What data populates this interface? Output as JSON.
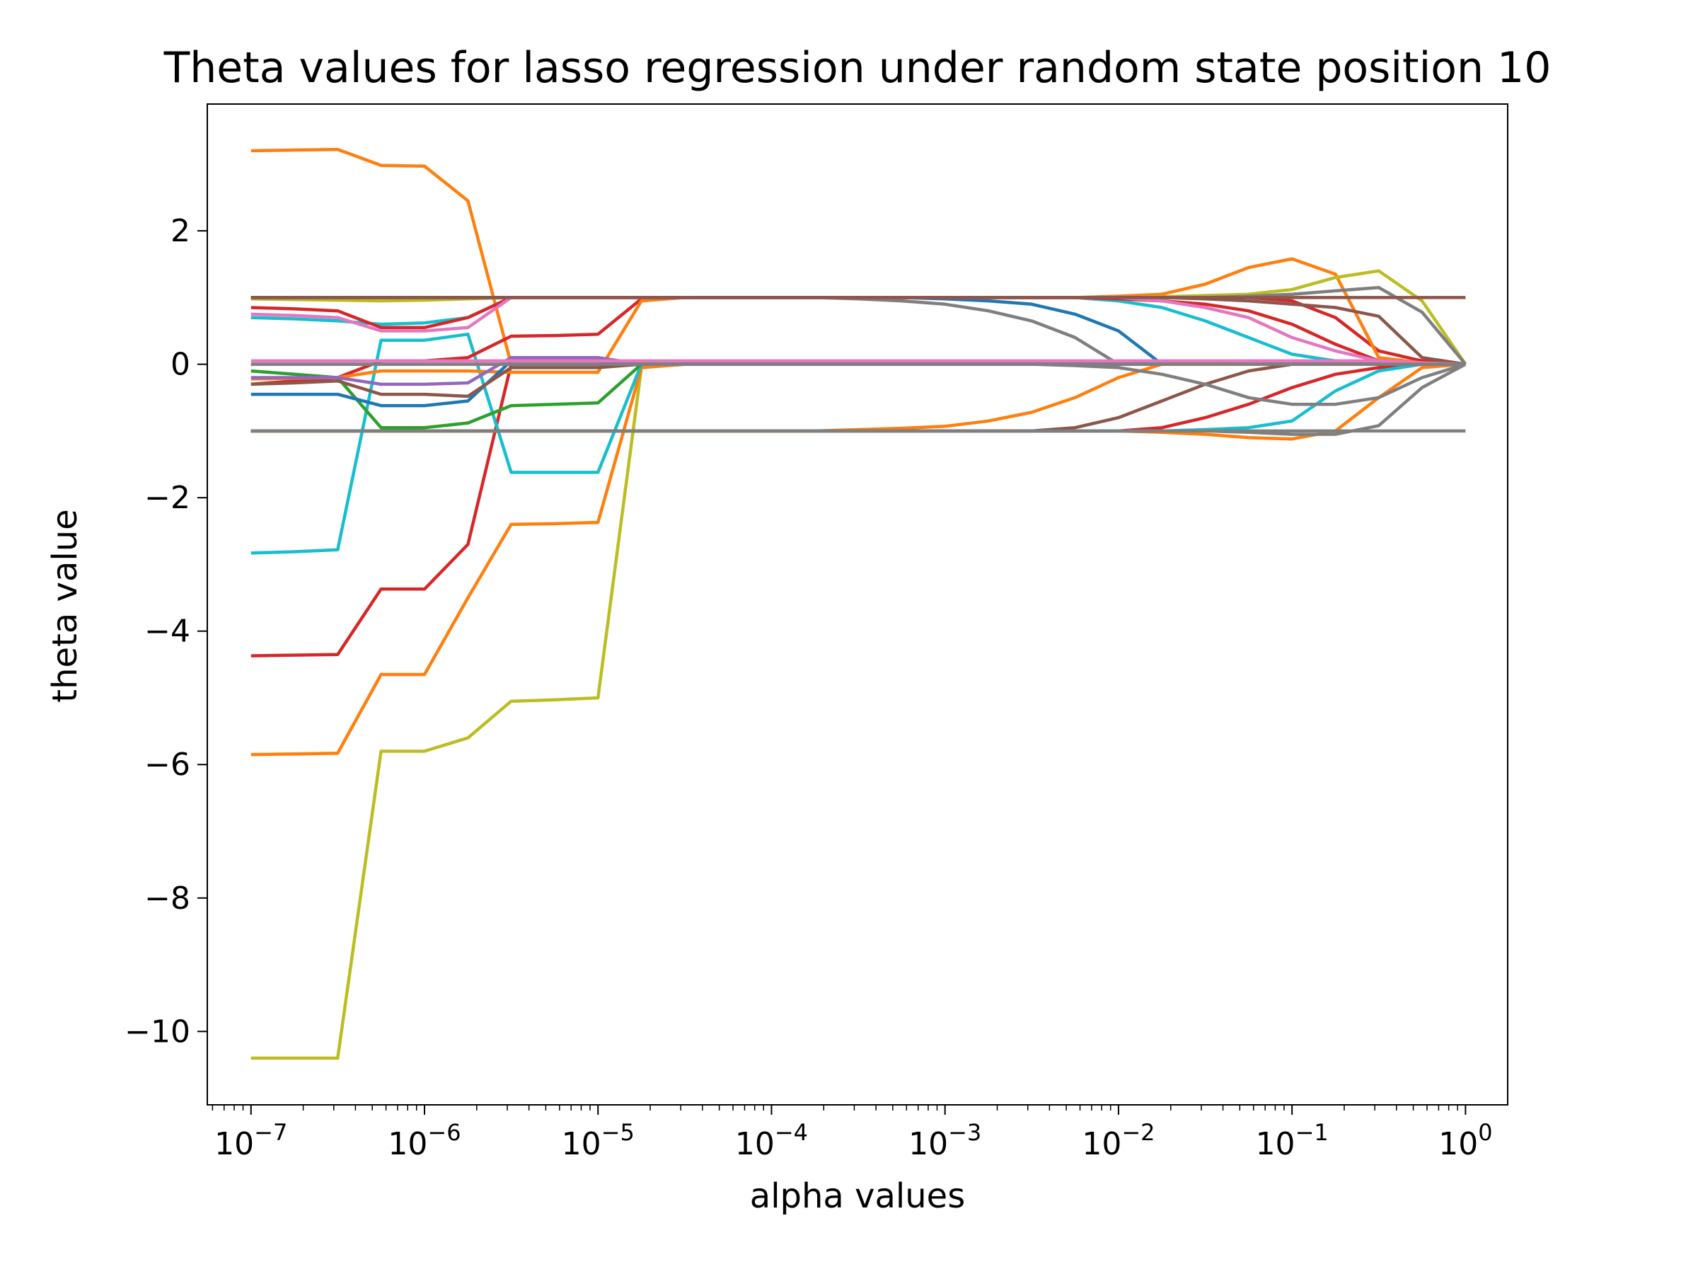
{
  "chart_data": {
    "type": "line",
    "title": "Theta values for lasso regression under random state position 10",
    "xlabel": "alpha values",
    "ylabel": "theta value",
    "xscale": "log",
    "xlim": [
      5.6e-08,
      1.75
    ],
    "ylim": [
      -11.1,
      3.9
    ],
    "grid": false,
    "x_ticks": [
      {
        "value": 1e-07,
        "base": "10",
        "exp": "−7"
      },
      {
        "value": 1e-06,
        "base": "10",
        "exp": "−6"
      },
      {
        "value": 1e-05,
        "base": "10",
        "exp": "−5"
      },
      {
        "value": 0.0001,
        "base": "10",
        "exp": "−4"
      },
      {
        "value": 0.001,
        "base": "10",
        "exp": "−3"
      },
      {
        "value": 0.01,
        "base": "10",
        "exp": "−2"
      },
      {
        "value": 0.1,
        "base": "10",
        "exp": "−1"
      },
      {
        "value": 1,
        "base": "10",
        "exp": "0"
      }
    ],
    "y_ticks": [
      {
        "value": 2,
        "label": "2"
      },
      {
        "value": 0,
        "label": "0"
      },
      {
        "value": -2,
        "label": "−2"
      },
      {
        "value": -4,
        "label": "−4"
      },
      {
        "value": -6,
        "label": "−6"
      },
      {
        "value": -8,
        "label": "−8"
      },
      {
        "value": -10,
        "label": "−10"
      }
    ],
    "x": [
      1e-07,
      1.78e-07,
      3.16e-07,
      5.62e-07,
      1e-06,
      1.78e-06,
      3.16e-06,
      5.62e-06,
      1e-05,
      1.78e-05,
      3.16e-05,
      5.62e-05,
      0.0001,
      0.000178,
      0.000316,
      0.000562,
      0.001,
      0.00178,
      0.00316,
      0.00562,
      0.01,
      0.0178,
      0.0316,
      0.0562,
      0.1,
      0.178,
      0.316,
      0.562,
      1
    ],
    "series": [
      {
        "color": "#ff7f0e",
        "values": [
          3.2,
          3.21,
          3.22,
          2.98,
          2.97,
          2.45,
          0.0,
          0.0,
          0.0,
          0.0,
          0.0,
          0.0,
          0.0,
          0.0,
          0.0,
          0.0,
          0.0,
          0.0,
          0.0,
          0.0,
          0.0,
          0.0,
          0.0,
          0.0,
          0.0,
          0.0,
          0.0,
          0.0,
          0.0
        ]
      },
      {
        "color": "#bcbd22",
        "values": [
          -10.4,
          -10.4,
          -10.4,
          -5.8,
          -5.8,
          -5.6,
          -5.05,
          -5.03,
          -5.0,
          -0.05,
          0.0,
          0.0,
          0.0,
          0.0,
          0.0,
          0.0,
          0.0,
          0.0,
          0.0,
          0.0,
          0.0,
          0.0,
          0.0,
          0.0,
          0.0,
          0.0,
          0.0,
          0.0,
          0.0
        ]
      },
      {
        "color": "#ff7f0e",
        "values": [
          -5.85,
          -5.84,
          -5.83,
          -4.65,
          -4.65,
          -3.5,
          -2.4,
          -2.39,
          -2.37,
          -0.05,
          0.0,
          0.0,
          0.0,
          0.0,
          0.0,
          0.0,
          0.0,
          0.0,
          0.0,
          0.0,
          0.0,
          0.0,
          0.0,
          0.0,
          0.0,
          0.0,
          0.0,
          0.0,
          0.0
        ]
      },
      {
        "color": "#d62728",
        "values": [
          -4.37,
          -4.36,
          -4.35,
          -3.37,
          -3.37,
          -2.7,
          0.0,
          0.0,
          0.0,
          0.0,
          0.0,
          0.0,
          0.0,
          0.0,
          0.0,
          0.0,
          0.0,
          0.0,
          0.0,
          0.0,
          0.0,
          0.0,
          0.0,
          0.0,
          0.0,
          0.0,
          0.0,
          0.0,
          0.0
        ]
      },
      {
        "color": "#17becf",
        "values": [
          -2.83,
          -2.81,
          -2.78,
          0.36,
          0.36,
          0.45,
          -1.62,
          -1.62,
          -1.62,
          0.0,
          0.0,
          0.0,
          0.0,
          0.0,
          0.0,
          0.0,
          0.0,
          0.0,
          0.0,
          0.0,
          0.0,
          0.0,
          0.0,
          0.0,
          0.0,
          0.0,
          0.0,
          0.0,
          0.0
        ]
      },
      {
        "color": "#2ca02c",
        "values": [
          -0.1,
          -0.15,
          -0.2,
          -0.95,
          -0.95,
          -0.88,
          -0.62,
          -0.6,
          -0.58,
          0.0,
          0.0,
          0.0,
          0.0,
          0.0,
          0.0,
          0.0,
          0.0,
          0.0,
          0.0,
          0.0,
          0.0,
          0.0,
          0.0,
          0.0,
          0.0,
          0.0,
          0.0,
          0.0,
          0.0
        ]
      },
      {
        "color": "#d62728",
        "values": [
          -0.3,
          -0.25,
          -0.2,
          0.05,
          0.05,
          0.1,
          0.42,
          0.43,
          0.45,
          0.98,
          1.0,
          1.0,
          1.0,
          1.0,
          1.0,
          1.0,
          1.0,
          1.0,
          1.0,
          1.0,
          1.0,
          1.0,
          1.0,
          1.0,
          0.95,
          0.7,
          0.2,
          0.05,
          0.0
        ]
      },
      {
        "color": "#ff7f0e",
        "values": [
          -0.22,
          -0.21,
          -0.2,
          -0.1,
          -0.1,
          -0.1,
          -0.12,
          -0.12,
          -0.12,
          0.95,
          1.0,
          1.0,
          1.0,
          1.0,
          1.0,
          1.0,
          1.0,
          1.0,
          1.0,
          1.0,
          1.02,
          1.05,
          1.2,
          1.45,
          1.58,
          1.35,
          0.1,
          0.02,
          0.0
        ]
      },
      {
        "color": "#bcbd22",
        "values": [
          0.98,
          0.97,
          0.96,
          0.95,
          0.96,
          0.98,
          1.0,
          1.0,
          1.0,
          1.0,
          1.0,
          1.0,
          1.0,
          1.0,
          1.0,
          1.0,
          1.0,
          1.0,
          1.0,
          1.0,
          1.0,
          1.01,
          1.03,
          1.05,
          1.12,
          1.3,
          1.4,
          0.95,
          0.0
        ]
      },
      {
        "color": "#7f7f7f",
        "values": [
          1.0,
          1.0,
          1.0,
          1.0,
          1.0,
          1.0,
          1.0,
          1.0,
          1.0,
          1.0,
          1.0,
          1.0,
          1.0,
          1.0,
          1.0,
          1.0,
          1.0,
          1.0,
          1.0,
          1.0,
          1.0,
          1.0,
          1.0,
          1.02,
          1.05,
          1.1,
          1.15,
          0.78,
          0.0
        ]
      },
      {
        "color": "#8c564b",
        "values": [
          1.0,
          1.0,
          1.0,
          1.0,
          1.0,
          1.0,
          1.0,
          1.0,
          1.0,
          1.0,
          1.0,
          1.0,
          1.0,
          1.0,
          1.0,
          1.0,
          1.0,
          1.0,
          1.0,
          1.0,
          1.0,
          1.0,
          0.98,
          0.95,
          0.9,
          0.85,
          0.72,
          0.1,
          0.0
        ]
      },
      {
        "color": "#1f77b4",
        "values": [
          1.0,
          1.0,
          1.0,
          1.0,
          1.0,
          1.0,
          1.0,
          1.0,
          1.0,
          1.0,
          1.0,
          1.0,
          1.0,
          1.0,
          1.0,
          1.0,
          0.98,
          0.95,
          0.9,
          0.75,
          0.5,
          0.0,
          0.0,
          0.0,
          0.0,
          0.0,
          0.0,
          0.0,
          0.0
        ]
      },
      {
        "color": "#7f7f7f",
        "values": [
          1.0,
          1.0,
          1.0,
          1.0,
          1.0,
          1.0,
          1.0,
          1.0,
          1.0,
          1.0,
          1.0,
          1.0,
          1.0,
          1.0,
          0.98,
          0.95,
          0.9,
          0.8,
          0.65,
          0.4,
          0.0,
          0.0,
          0.0,
          0.0,
          0.0,
          0.0,
          0.0,
          0.0,
          0.0
        ]
      },
      {
        "color": "#17becf",
        "values": [
          0.7,
          0.68,
          0.65,
          0.6,
          0.62,
          0.7,
          1.0,
          1.0,
          1.0,
          1.0,
          1.0,
          1.0,
          1.0,
          1.0,
          1.0,
          1.0,
          1.0,
          1.0,
          1.0,
          1.0,
          0.95,
          0.85,
          0.65,
          0.4,
          0.15,
          0.05,
          0.0,
          0.0,
          0.0
        ]
      },
      {
        "color": "#d62728",
        "values": [
          0.85,
          0.83,
          0.8,
          0.55,
          0.55,
          0.7,
          1.0,
          1.0,
          1.0,
          1.0,
          1.0,
          1.0,
          1.0,
          1.0,
          1.0,
          1.0,
          1.0,
          1.0,
          1.0,
          1.0,
          0.98,
          0.95,
          0.9,
          0.8,
          0.6,
          0.3,
          0.05,
          0.0,
          0.0
        ]
      },
      {
        "color": "#e377c2",
        "values": [
          0.75,
          0.73,
          0.7,
          0.5,
          0.5,
          0.55,
          1.0,
          1.0,
          1.0,
          1.0,
          1.0,
          1.0,
          1.0,
          1.0,
          1.0,
          1.0,
          1.0,
          1.0,
          1.0,
          1.0,
          1.0,
          0.95,
          0.85,
          0.7,
          0.4,
          0.2,
          0.05,
          0.0,
          0.0
        ]
      },
      {
        "color": "#1f77b4",
        "values": [
          -0.45,
          -0.45,
          -0.45,
          -0.62,
          -0.62,
          -0.55,
          0.05,
          0.05,
          0.05,
          0.0,
          0.0,
          0.0,
          0.0,
          0.0,
          0.0,
          0.0,
          0.0,
          0.0,
          0.0,
          0.0,
          0.0,
          0.0,
          0.0,
          0.0,
          0.0,
          0.0,
          0.0,
          0.0,
          0.0
        ]
      },
      {
        "color": "#8c564b",
        "values": [
          -0.3,
          -0.28,
          -0.25,
          -0.45,
          -0.45,
          -0.48,
          -0.05,
          -0.05,
          -0.05,
          0.0,
          0.0,
          0.0,
          0.0,
          0.0,
          0.0,
          0.0,
          0.0,
          0.0,
          0.0,
          0.0,
          0.0,
          0.0,
          0.0,
          0.0,
          0.0,
          0.0,
          0.0,
          0.0,
          0.0
        ]
      },
      {
        "color": "#9467bd",
        "values": [
          -0.2,
          -0.2,
          -0.2,
          -0.3,
          -0.3,
          -0.28,
          0.1,
          0.1,
          0.1,
          0.0,
          0.0,
          0.0,
          0.0,
          0.0,
          0.0,
          0.0,
          0.0,
          0.0,
          0.0,
          0.0,
          0.0,
          0.0,
          0.0,
          0.0,
          0.0,
          0.0,
          0.0,
          0.0,
          0.0
        ]
      },
      {
        "color": "#d62728",
        "values": [
          -1.0,
          -1.0,
          -1.0,
          -1.0,
          -1.0,
          -1.0,
          -1.0,
          -1.0,
          -1.0,
          -1.0,
          -1.0,
          -1.0,
          -1.0,
          -1.0,
          -1.0,
          -1.0,
          -1.0,
          -1.0,
          -1.0,
          -1.0,
          -1.0,
          -0.95,
          -0.8,
          -0.6,
          -0.35,
          -0.15,
          -0.05,
          0.0,
          0.0
        ]
      },
      {
        "color": "#ff7f0e",
        "values": [
          -1.0,
          -1.0,
          -1.0,
          -1.0,
          -1.0,
          -1.0,
          -1.0,
          -1.0,
          -1.0,
          -1.0,
          -1.0,
          -1.0,
          -1.0,
          -1.0,
          -1.0,
          -1.0,
          -1.0,
          -1.0,
          -1.0,
          -1.0,
          -1.0,
          -1.02,
          -1.05,
          -1.1,
          -1.12,
          -1.0,
          -0.5,
          -0.05,
          0.0
        ]
      },
      {
        "color": "#7f7f7f",
        "values": [
          -1.0,
          -1.0,
          -1.0,
          -1.0,
          -1.0,
          -1.0,
          -1.0,
          -1.0,
          -1.0,
          -1.0,
          -1.0,
          -1.0,
          -1.0,
          -1.0,
          -1.0,
          -1.0,
          -1.0,
          -1.0,
          -1.0,
          -1.0,
          -1.0,
          -1.0,
          -1.0,
          -1.02,
          -1.05,
          -1.05,
          -0.92,
          -0.35,
          0.0
        ]
      },
      {
        "color": "#17becf",
        "values": [
          -1.0,
          -1.0,
          -1.0,
          -1.0,
          -1.0,
          -1.0,
          -1.0,
          -1.0,
          -1.0,
          -1.0,
          -1.0,
          -1.0,
          -1.0,
          -1.0,
          -1.0,
          -1.0,
          -1.0,
          -1.0,
          -1.0,
          -1.0,
          -1.0,
          -1.0,
          -0.98,
          -0.95,
          -0.85,
          -0.4,
          -0.1,
          0.0,
          0.0
        ]
      },
      {
        "color": "#ff7f0e",
        "values": [
          -1.0,
          -1.0,
          -1.0,
          -1.0,
          -1.0,
          -1.0,
          -1.0,
          -1.0,
          -1.0,
          -1.0,
          -1.0,
          -1.0,
          -1.0,
          -1.0,
          -0.98,
          -0.96,
          -0.93,
          -0.85,
          -0.72,
          -0.5,
          -0.2,
          0.0,
          0.0,
          0.0,
          0.0,
          0.0,
          0.0,
          0.0,
          0.0
        ]
      },
      {
        "color": "#8c564b",
        "values": [
          -1.0,
          -1.0,
          -1.0,
          -1.0,
          -1.0,
          -1.0,
          -1.0,
          -1.0,
          -1.0,
          -1.0,
          -1.0,
          -1.0,
          -1.0,
          -1.0,
          -1.0,
          -1.0,
          -1.0,
          -1.0,
          -1.0,
          -0.95,
          -0.8,
          -0.55,
          -0.3,
          -0.1,
          0.0,
          0.0,
          0.0,
          0.0,
          0.0
        ]
      },
      {
        "color": "#7f7f7f",
        "values": [
          0.0,
          0.0,
          0.0,
          0.0,
          0.0,
          0.0,
          0.0,
          0.0,
          0.0,
          0.0,
          0.0,
          0.0,
          0.0,
          0.0,
          0.0,
          0.0,
          0.0,
          0.0,
          0.0,
          -0.02,
          -0.05,
          -0.15,
          -0.3,
          -0.5,
          -0.6,
          -0.6,
          -0.5,
          -0.2,
          0.0
        ]
      },
      {
        "color": "#e377c2",
        "values": [
          0.05,
          0.05,
          0.05,
          0.05,
          0.05,
          0.05,
          0.05,
          0.05,
          0.05,
          0.05,
          0.05,
          0.05,
          0.05,
          0.05,
          0.05,
          0.05,
          0.05,
          0.05,
          0.05,
          0.05,
          0.05,
          0.05,
          0.05,
          0.05,
          0.05,
          0.05,
          0.05,
          0.02,
          0.0
        ]
      },
      {
        "color": "#7f7f7f",
        "values": [
          -1.0,
          -1.0,
          -1.0,
          -1.0,
          -1.0,
          -1.0,
          -1.0,
          -1.0,
          -1.0,
          -1.0,
          -1.0,
          -1.0,
          -1.0,
          -1.0,
          -1.0,
          -1.0,
          -1.0,
          -1.0,
          -1.0,
          -1.0,
          -1.0,
          -1.0,
          -1.0,
          -1.0,
          -1.0,
          -1.0,
          -1.0,
          -1.0,
          -1.0
        ]
      },
      {
        "color": "#8c564b",
        "values": [
          1.0,
          1.0,
          1.0,
          1.0,
          1.0,
          1.0,
          1.0,
          1.0,
          1.0,
          1.0,
          1.0,
          1.0,
          1.0,
          1.0,
          1.0,
          1.0,
          1.0,
          1.0,
          1.0,
          1.0,
          1.0,
          1.0,
          1.0,
          1.0,
          1.0,
          1.0,
          1.0,
          1.0,
          1.0
        ]
      },
      {
        "color": "#7f7f7f",
        "values": [
          0.0,
          0.0,
          0.0,
          0.0,
          0.0,
          0.0,
          0.0,
          0.0,
          0.0,
          0.0,
          0.0,
          0.0,
          0.0,
          0.0,
          0.0,
          0.0,
          0.0,
          0.0,
          0.0,
          0.0,
          0.0,
          0.0,
          0.0,
          0.0,
          0.0,
          0.0,
          0.0,
          0.0,
          0.0
        ]
      }
    ]
  }
}
